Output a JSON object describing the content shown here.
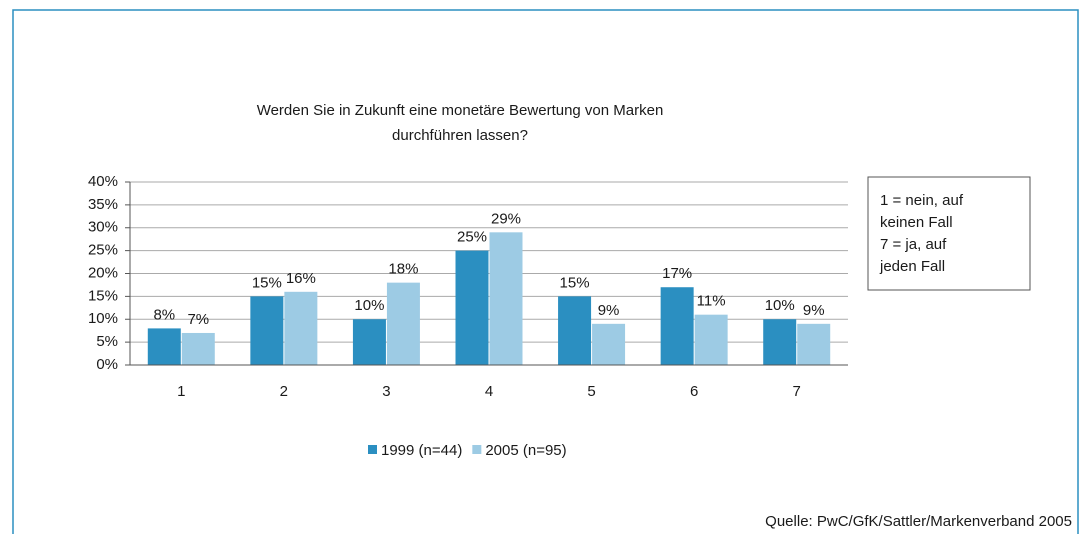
{
  "chart_data": {
    "type": "bar",
    "title": [
      "Werden Sie in Zukunft eine monetäre Bewertung von Marken",
      "durchführen lassen?"
    ],
    "categories": [
      "1",
      "2",
      "3",
      "4",
      "5",
      "6",
      "7"
    ],
    "series": [
      {
        "name": "1999 (n=44)",
        "color": "#2b8fc1",
        "values": [
          8,
          15,
          10,
          25,
          15,
          17,
          10
        ],
        "value_labels": [
          "8%",
          "15%",
          "10%",
          "25%",
          "15%",
          "17%",
          "10%"
        ]
      },
      {
        "name": "2005 (n=95)",
        "color": "#9dcbe4",
        "values": [
          7,
          16,
          18,
          29,
          9,
          11,
          9
        ],
        "value_labels": [
          "7%",
          "16%",
          "18%",
          "29%",
          "9%",
          "11%",
          "9%"
        ]
      }
    ],
    "ylim": [
      0,
      40
    ],
    "yticks": [
      {
        "value": 0,
        "label": "0%"
      },
      {
        "value": 5,
        "label": "5%"
      },
      {
        "value": 10,
        "label": "10%"
      },
      {
        "value": 15,
        "label": "15%"
      },
      {
        "value": 20,
        "label": "20%"
      },
      {
        "value": 25,
        "label": "25%"
      },
      {
        "value": 30,
        "label": "30%"
      },
      {
        "value": 35,
        "label": "35%"
      },
      {
        "value": 40,
        "label": "40%"
      }
    ],
    "grid": true,
    "legend": "bottom",
    "note": [
      "1 = nein, auf",
      "keinen Fall",
      "7 = ja, auf",
      "jeden Fall"
    ],
    "source": "Quelle: PwC/GfK/Sattler/Markenverband 2005"
  }
}
